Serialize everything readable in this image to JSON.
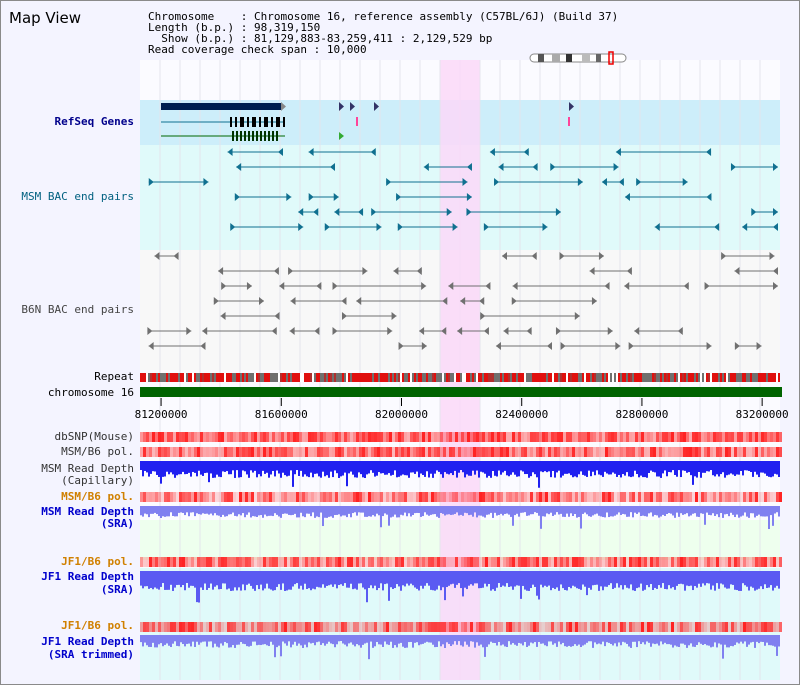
{
  "page": {
    "title": "Map View"
  },
  "info": {
    "chromosome_label": "Chromosome",
    "chromosome_value": "Chromosome 16, reference assembly (C57BL/6J) (Build 37)",
    "length_label": "Length (b.p.)",
    "length_value": "98,319,150",
    "show_label": "Show (b.p.)",
    "show_value": "81,129,883-83,259,411 : 2,129,529 bp",
    "span_label": "Read coverage check span",
    "span_value": "10,000"
  },
  "tracks": {
    "refseq": "RefSeq Genes",
    "msm_bac": "MSM BAC end pairs",
    "b6n_bac": "B6N BAC end pairs",
    "repeat": "Repeat",
    "chromosome": "chromosome 16",
    "dbsnp": "dbSNP(Mouse)",
    "msm_b6_pol_1": "MSM/B6 pol.",
    "msm_depth_cap_1": "MSM Read Depth",
    "msm_depth_cap_2": "(Capillary)",
    "msm_b6_pol_2": "MSM/B6 pol.",
    "msm_depth_sra_1": "MSM Read Depth",
    "msm_depth_sra_2": "(SRA)",
    "jf1_b6_pol_1": "JF1/B6 pol.",
    "jf1_depth_sra_1": "JF1 Read Depth",
    "jf1_depth_sra_2": "(SRA)",
    "jf1_b6_pol_2": "JF1/B6 pol.",
    "jf1_depth_trim_1": "JF1 Read Depth",
    "jf1_depth_trim_2": "(SRA trimmed)"
  },
  "axis": {
    "ticks": [
      "81200000",
      "81600000",
      "82000000",
      "82400000",
      "82800000",
      "83200000"
    ],
    "tick_values": [
      81200000,
      81600000,
      82000000,
      82400000,
      82800000,
      83200000
    ],
    "start": 81129883,
    "end": 83259411
  },
  "highlight": {
    "start": 82130000,
    "end": 82260000
  },
  "colors": {
    "refseq_bg": "#cdeefa",
    "msm_bg": "#e0fafa",
    "highlight": "#fad8f8",
    "chrom_bar": "#006400",
    "refseq_gene": "#002050",
    "msm_pair": "#107090",
    "b6n_pair": "#707070",
    "snp_red": "#ff2020",
    "depth_capillary": "#2020f0",
    "depth_sra": "#8080f0"
  }
}
